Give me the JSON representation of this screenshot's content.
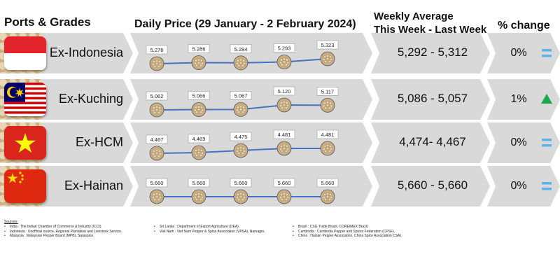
{
  "headers": {
    "ports_grades": "Ports & Grades",
    "daily_price": "Daily Price (29 January - 2 February 2024)",
    "weekly_line1": "Weekly Average",
    "weekly_line2": "This Week - Last Week",
    "pct_change": "% change"
  },
  "chart_data": {
    "type": "line",
    "title": "Daily Price (29 January - 2 February 2024)",
    "series": [
      {
        "name": "Ex-Indonesia",
        "values": [
          "5.276",
          "5.286",
          "5.284",
          "5.293",
          "5.323"
        ]
      },
      {
        "name": "Ex-Kuching",
        "values": [
          "5.062",
          "5.066",
          "5.067",
          "5.120",
          "5.117"
        ]
      },
      {
        "name": "Ex-HCM",
        "values": [
          "4.467",
          "4.469",
          "4.475",
          "4.481",
          "4.481"
        ]
      },
      {
        "name": "Ex-Hainan",
        "values": [
          "5.660",
          "5.660",
          "5.660",
          "5.660",
          "5.660"
        ]
      }
    ]
  },
  "rows": [
    {
      "port": "Ex-Indonesia",
      "flag": "indonesia-flag-icon",
      "weekly": "5,292 - 5,312",
      "pct": "0%",
      "indicator": "equal-icon"
    },
    {
      "port": "Ex-Kuching",
      "flag": "malaysia-flag-icon",
      "weekly": "5,086 - 5,057",
      "pct": "1%",
      "indicator": "up-triangle-icon"
    },
    {
      "port": "Ex-HCM",
      "flag": "vietnam-flag-icon",
      "weekly": "4,474- 4,467",
      "pct": "0%",
      "indicator": "equal-icon"
    },
    {
      "port": "Ex-Hainan",
      "flag": "china-flag-icon",
      "weekly": "5,660 - 5,660",
      "pct": "0%",
      "indicator": "equal-icon"
    }
  ],
  "colors": {
    "line": "#4472c4",
    "arrow_fill": "#d9d9d9",
    "equal": "#5ab4e8",
    "up": "#19a84a"
  },
  "sources": {
    "title": "Sources:",
    "col1": [
      "India : The Indian Chamber of Commerce & Industry (ICCI)",
      "Indonesia : Unofficial source, Regional Plantation and Livestock Service.",
      "Malaysia : Malaysian Pepper Board (MPB), Saraspice."
    ],
    "col2": [
      "Sri Lanka : Department of Export Agriculture (DEA).",
      "Viet Nam : Viet Nam Pepper & Spice Association (VPSA), Namagro."
    ],
    "col3": [
      "Brazil : CSG Trade Brazil, COREIMEX Brazil.",
      "Cambodia : Cambodia Pepper and Spices Federation (CPSF).",
      "China : Hainan Pepper Association, China Spice Association CSA)."
    ]
  }
}
